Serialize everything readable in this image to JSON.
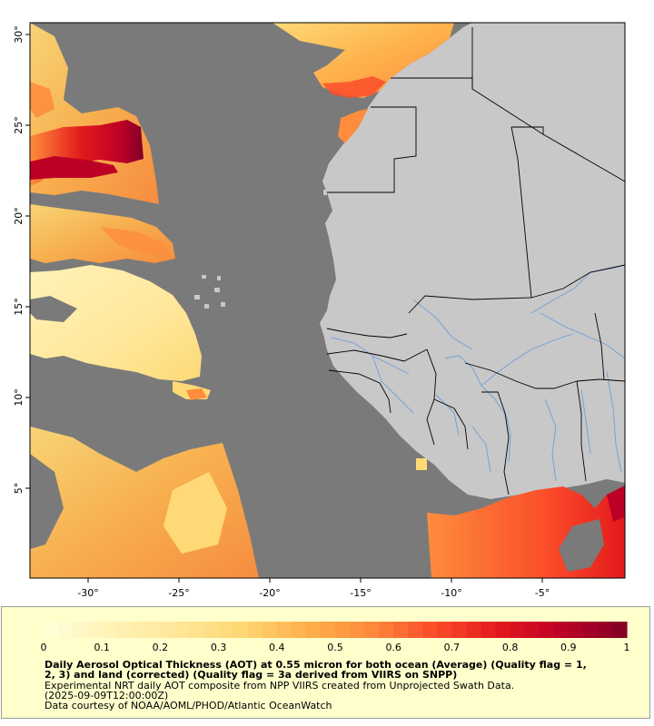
{
  "map": {
    "lat_ticks": [
      "30°",
      "25°",
      "20°",
      "15°",
      "10°",
      "5°"
    ],
    "lon_ticks": [
      "-30°",
      "-25°",
      "-20°",
      "-15°",
      "-10°",
      "-5°"
    ],
    "colors": {
      "ocean_nodata": "#7a7a7a",
      "land": "#c8c8c8",
      "river": "#6f9fd8",
      "border": "#000000"
    }
  },
  "legend": {
    "ticks": [
      "0",
      "0.1",
      "0.2",
      "0.3",
      "0.4",
      "0.5",
      "0.6",
      "0.7",
      "0.8",
      "0.9",
      "1"
    ],
    "colors": [
      "#ffffd9",
      "#fff3b8",
      "#ffe79a",
      "#fed976",
      "#feb24c",
      "#fd8d3c",
      "#fc4e2a",
      "#e31a1c",
      "#bd0026",
      "#800026"
    ],
    "title_line1": "Daily Aerosol Optical Thickness (AOT) at 0.55 micron for both ocean (Average) (Quality flag = 1,",
    "title_line2": "2, 3) and land (corrected) (Quality flag = 3a derived from VIIRS on SNPP)",
    "desc_line1": "Experimental NRT daily AOT composite from NPP VIIRS created from Unprojected Swath Data.",
    "desc_line2": "(2025-09-09T12:00:00Z)",
    "credit": "Data courtesy of NOAA/AOML/PHOD/Atlantic OceanWatch"
  }
}
